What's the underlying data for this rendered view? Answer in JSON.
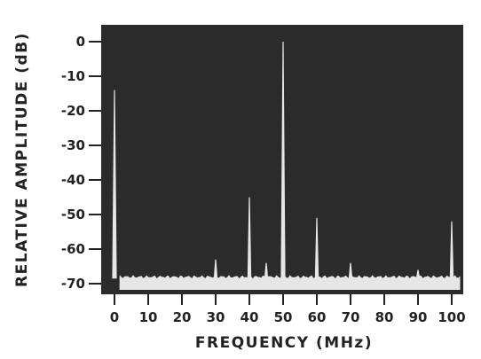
{
  "chart_data": {
    "type": "line",
    "title": "",
    "xlabel": "FREQUENCY (MHz)",
    "ylabel": "RELATIVE AMPLITUDE (dB)",
    "xlim": [
      -5,
      108
    ],
    "ylim": [
      -74,
      4
    ],
    "x_ticks": [
      0,
      10,
      20,
      30,
      40,
      50,
      60,
      70,
      80,
      90,
      100
    ],
    "y_ticks": [
      0,
      -10,
      -20,
      -30,
      -40,
      -50,
      -60,
      -70
    ],
    "y_tick_labels": [
      "0",
      "-10",
      "-20",
      "-30",
      "-40",
      "-50",
      "-60",
      "-70"
    ],
    "noise_floor_db": -68,
    "grid": false,
    "background_color": "#2b2b2b",
    "trace_color": "#e6e6e6",
    "series": [
      {
        "peaks": [
          {
            "x": 0,
            "y": -14
          },
          {
            "x": 30,
            "y": -63
          },
          {
            "x": 40,
            "y": -45
          },
          {
            "x": 45,
            "y": -64
          },
          {
            "x": 50,
            "y": 0
          },
          {
            "x": 60,
            "y": -51
          },
          {
            "x": 70,
            "y": -64
          },
          {
            "x": 90,
            "y": -66
          },
          {
            "x": 100,
            "y": -52
          }
        ]
      }
    ]
  }
}
